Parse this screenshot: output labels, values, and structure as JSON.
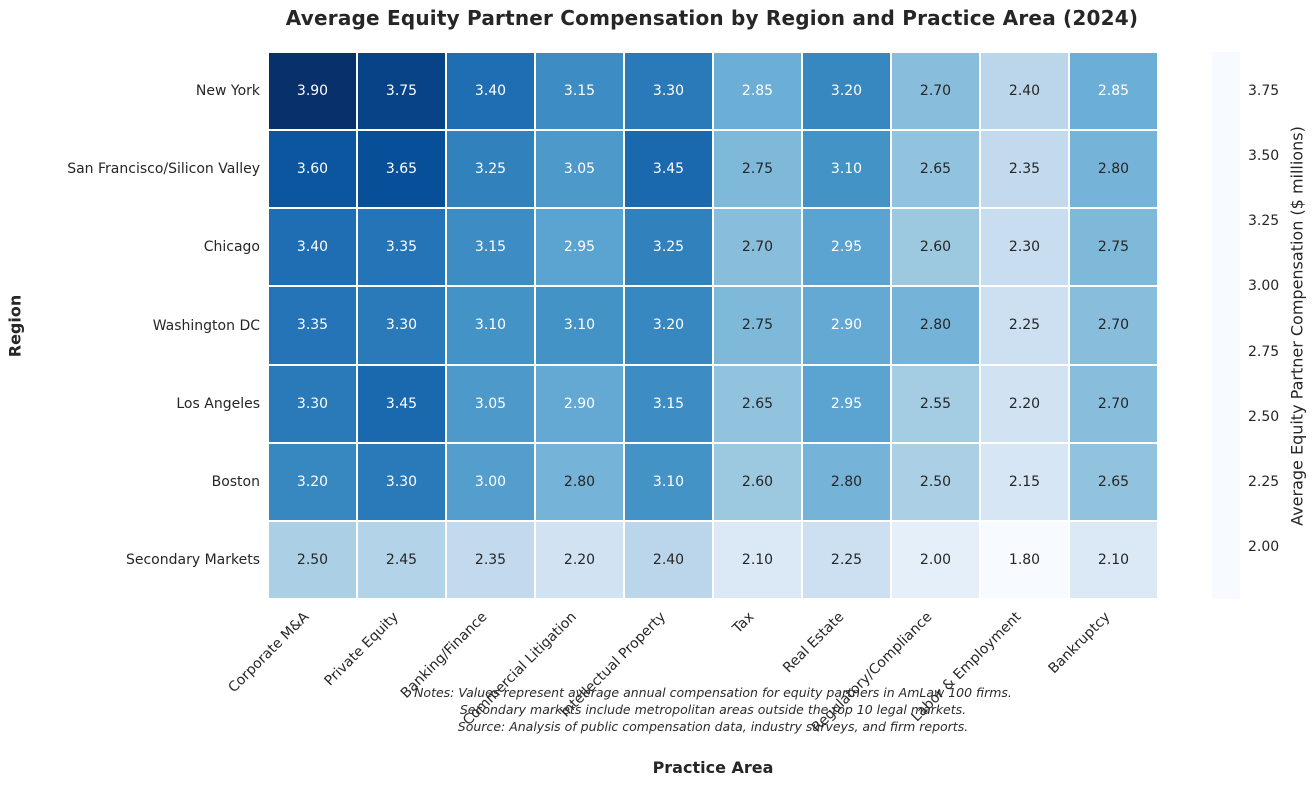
{
  "chart_data": {
    "type": "heatmap",
    "title": "Average Equity Partner Compensation by Region and Practice Area (2024)",
    "xlabel": "Practice Area",
    "ylabel": "Region",
    "colorbar_label": "Average Equity Partner Compensation ($ millions)",
    "columns": [
      "Corporate M&A",
      "Private Equity",
      "Banking/Finance",
      "Commercial Litigation",
      "Intellectual Property",
      "Tax",
      "Real Estate",
      "Regulatory/Compliance",
      "Labor & Employment",
      "Bankruptcy"
    ],
    "rows": [
      "New York",
      "San Francisco/Silicon Valley",
      "Chicago",
      "Washington DC",
      "Los Angeles",
      "Boston",
      "Secondary Markets"
    ],
    "values": [
      [
        3.9,
        3.75,
        3.4,
        3.15,
        3.3,
        2.85,
        3.2,
        2.7,
        2.4,
        2.85
      ],
      [
        3.6,
        3.65,
        3.25,
        3.05,
        3.45,
        2.75,
        3.1,
        2.65,
        2.35,
        2.8
      ],
      [
        3.4,
        3.35,
        3.15,
        2.95,
        3.25,
        2.7,
        2.95,
        2.6,
        2.3,
        2.75
      ],
      [
        3.35,
        3.3,
        3.1,
        3.1,
        3.2,
        2.75,
        2.9,
        2.8,
        2.25,
        2.7
      ],
      [
        3.3,
        3.45,
        3.05,
        2.9,
        3.15,
        2.65,
        2.95,
        2.55,
        2.2,
        2.7
      ],
      [
        3.2,
        3.3,
        3.0,
        2.8,
        3.1,
        2.6,
        2.8,
        2.5,
        2.15,
        2.65
      ],
      [
        2.5,
        2.45,
        2.35,
        2.2,
        2.4,
        2.1,
        2.25,
        2.0,
        1.8,
        2.1
      ]
    ],
    "vmin": 1.8,
    "vmax": 3.9,
    "colorbar_ticks": [
      3.75,
      3.5,
      3.25,
      3.0,
      2.75,
      2.5,
      2.25,
      2.0
    ],
    "colormap": "Blues",
    "colormap_stops": [
      "#f7fbff",
      "#deebf7",
      "#c6dbef",
      "#9ecae1",
      "#6baed6",
      "#4292c6",
      "#2171b5",
      "#08519c",
      "#08306b"
    ],
    "grid": false,
    "legend_position": "right-colorbar"
  },
  "notes": {
    "lines": [
      "Notes: Values represent average annual compensation for equity partners in AmLaw 100 firms.",
      "Secondary markets include metropolitan areas outside the top 10 legal markets.",
      "Source: Analysis of public compensation data, industry surveys, and firm reports."
    ]
  },
  "colors": {
    "background": "#ffffff",
    "text": "#262626",
    "annotation_light": "#ffffff",
    "annotation_dark": "#262626",
    "cell_border": "#ffffff"
  }
}
